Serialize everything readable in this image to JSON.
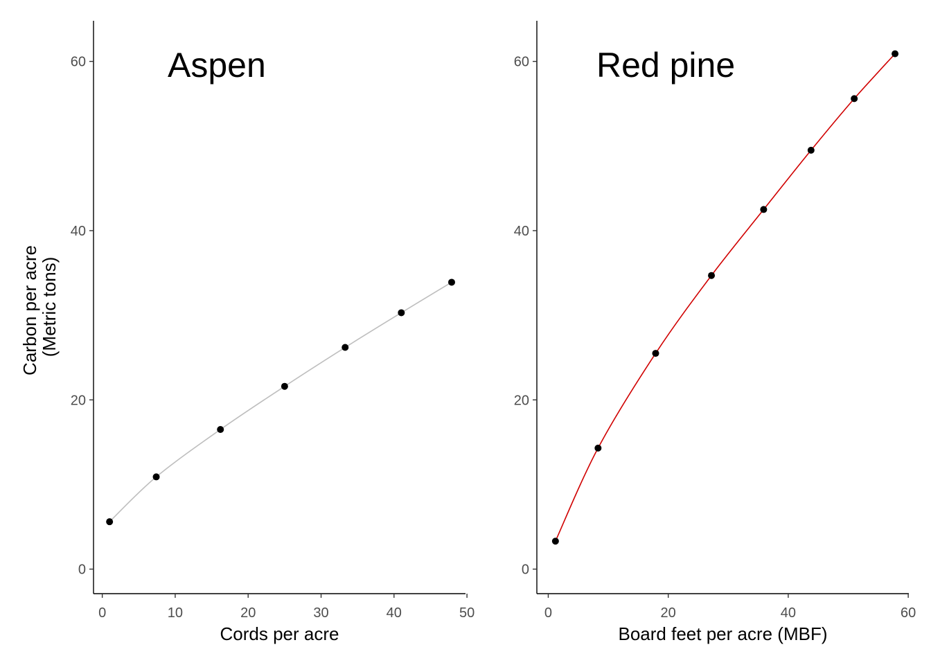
{
  "chart_data": [
    {
      "type": "line",
      "title": "Aspen",
      "xlabel": "Cords per acre",
      "ylabel_line1": "Carbon per acre",
      "ylabel_line2": "(Metric tons)",
      "xlim": [
        -1.2,
        49.8
      ],
      "ylim": [
        -2.9,
        64.8
      ],
      "x_ticks": [
        0,
        10,
        20,
        30,
        40,
        50
      ],
      "y_ticks": [
        0,
        20,
        40,
        60
      ],
      "line_color": "#bebebe",
      "point_color": "#000000",
      "series": [
        {
          "x": [
            1.0,
            7.4,
            16.2,
            25.0,
            33.3,
            41.0,
            47.9
          ],
          "y": [
            5.6,
            10.9,
            16.5,
            21.6,
            26.2,
            30.3,
            33.9
          ]
        }
      ]
    },
    {
      "type": "line",
      "title": "Red pine",
      "xlabel": "Board feet per acre (MBF)",
      "ylabel_line1": "",
      "ylabel_line2": "",
      "xlim": [
        -1.9,
        60.1
      ],
      "ylim": [
        -2.9,
        64.8
      ],
      "x_ticks": [
        0,
        20,
        40,
        60
      ],
      "y_ticks": [
        0,
        20,
        40,
        60
      ],
      "line_color": "#d00000",
      "point_color": "#000000",
      "series": [
        {
          "x": [
            1.2,
            8.3,
            17.9,
            27.2,
            35.9,
            43.8,
            51.0,
            57.8
          ],
          "y": [
            3.3,
            14.3,
            25.5,
            34.7,
            42.5,
            49.5,
            55.6,
            60.9
          ]
        }
      ]
    }
  ]
}
